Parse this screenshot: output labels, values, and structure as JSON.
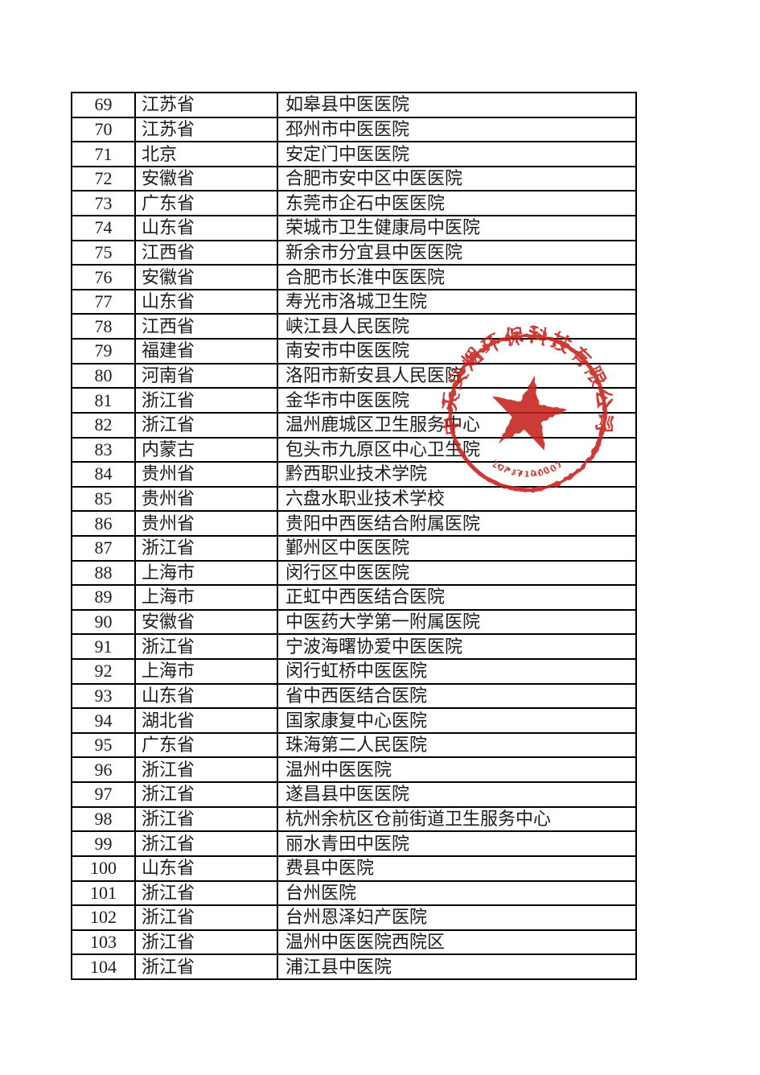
{
  "document": {
    "background": "#ffffff",
    "text_color": "#1c1c1c",
    "border_color": "#000000"
  },
  "table": {
    "rows": [
      {
        "no": "69",
        "province": "江苏省",
        "unit": "如皋县中医医院"
      },
      {
        "no": "70",
        "province": "江苏省",
        "unit": "邳州市中医医院"
      },
      {
        "no": "71",
        "province": "北京",
        "unit": "安定门中医医院"
      },
      {
        "no": "72",
        "province": "安徽省",
        "unit": "合肥市安中区中医医院"
      },
      {
        "no": "73",
        "province": "广东省",
        "unit": "东莞市企石中医医院"
      },
      {
        "no": "74",
        "province": "山东省",
        "unit": "荣城市卫生健康局中医院"
      },
      {
        "no": "75",
        "province": "江西省",
        "unit": "新余市分宜县中医医院"
      },
      {
        "no": "76",
        "province": "安徽省",
        "unit": "合肥市长淮中医医院"
      },
      {
        "no": "77",
        "province": "山东省",
        "unit": "寿光市洛城卫生院"
      },
      {
        "no": "78",
        "province": "江西省",
        "unit": "峡江县人民医院"
      },
      {
        "no": "79",
        "province": "福建省",
        "unit": "南安市中医医院"
      },
      {
        "no": "80",
        "province": "河南省",
        "unit": "洛阳市新安县人民医院"
      },
      {
        "no": "81",
        "province": "浙江省",
        "unit": "金华市中医医院"
      },
      {
        "no": "82",
        "province": "浙江省",
        "unit": "温州鹿城区卫生服务中心"
      },
      {
        "no": "83",
        "province": "内蒙古",
        "unit": "包头市九原区中心卫生院"
      },
      {
        "no": "84",
        "province": "贵州省",
        "unit": "黔西职业技术学院"
      },
      {
        "no": "85",
        "province": "贵州省",
        "unit": "六盘水职业技术学校"
      },
      {
        "no": "86",
        "province": "贵州省",
        "unit": "贵阳中西医结合附属医院"
      },
      {
        "no": "87",
        "province": "浙江省",
        "unit": "鄞州区中医医院"
      },
      {
        "no": "88",
        "province": "上海市",
        "unit": "闵行区中医医院"
      },
      {
        "no": "89",
        "province": "上海市",
        "unit": "正虹中西医结合医院"
      },
      {
        "no": "90",
        "province": "安徽省",
        "unit": "中医药大学第一附属医院"
      },
      {
        "no": "91",
        "province": "浙江省",
        "unit": "宁波海曙协爱中医医院"
      },
      {
        "no": "92",
        "province": "上海市",
        "unit": "闵行虹桥中医医院"
      },
      {
        "no": "93",
        "province": "山东省",
        "unit": "省中西医结合医院"
      },
      {
        "no": "94",
        "province": "湖北省",
        "unit": "国家康复中心医院"
      },
      {
        "no": "95",
        "province": "广东省",
        "unit": "珠海第二人民医院"
      },
      {
        "no": "96",
        "province": "浙江省",
        "unit": "温州中医医院"
      },
      {
        "no": "97",
        "province": "浙江省",
        "unit": "遂昌县中医医院"
      },
      {
        "no": "98",
        "province": "浙江省",
        "unit": "杭州余杭区仓前街道卫生服务中心"
      },
      {
        "no": "99",
        "province": "浙江省",
        "unit": "丽水青田中医院"
      },
      {
        "no": "100",
        "province": "山东省",
        "unit": "费县中医院"
      },
      {
        "no": "101",
        "province": "浙江省",
        "unit": "台州医院"
      },
      {
        "no": "102",
        "province": "浙江省",
        "unit": "台州恩泽妇产医院"
      },
      {
        "no": "103",
        "province": "浙江省",
        "unit": "温州中医医院西院区"
      },
      {
        "no": "104",
        "province": "浙江省",
        "unit": "浦江县中医院"
      }
    ]
  },
  "seal": {
    "ring_text": "中天义烟环保科技有限公司",
    "serial_number": "3207871000073",
    "color": "#c5231d"
  }
}
